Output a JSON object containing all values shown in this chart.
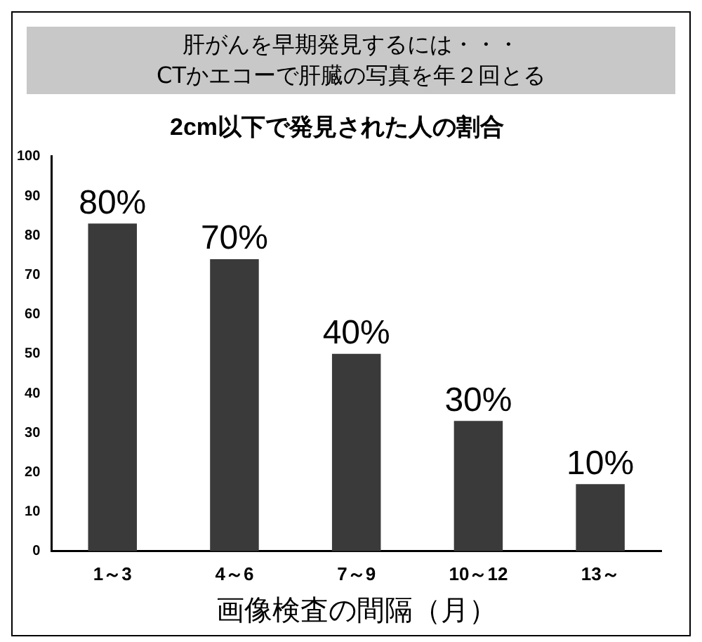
{
  "chart_data": {
    "type": "bar",
    "title": "肝がんを早期発見するには・・・\nCTかエコーで肝臓の写真を年２回とる",
    "subtitle": "2cm以下で発見された人の割合",
    "xlabel": "画像検査の間隔（月）",
    "categories": [
      "1～3",
      "4～6",
      "7～9",
      "10～12",
      "13～"
    ],
    "values": [
      83,
      74,
      50,
      33,
      17
    ],
    "color": "#3a3a3a",
    "annotations": [
      {
        "text": "80%",
        "x": "1～3",
        "y": 83
      },
      {
        "text": "70%",
        "x": "4～6",
        "y": 74
      },
      {
        "text": "40%",
        "x": "7～9",
        "y": 50
      },
      {
        "text": "30%",
        "x": "10～12",
        "y": 33
      },
      {
        "text": "10%",
        "x": "13～",
        "y": 17
      }
    ],
    "ylim": [
      0,
      100
    ],
    "yticks": [
      0,
      10,
      20,
      30,
      40,
      50,
      60,
      70,
      80,
      90,
      100
    ],
    "grid": false,
    "legend": false
  }
}
